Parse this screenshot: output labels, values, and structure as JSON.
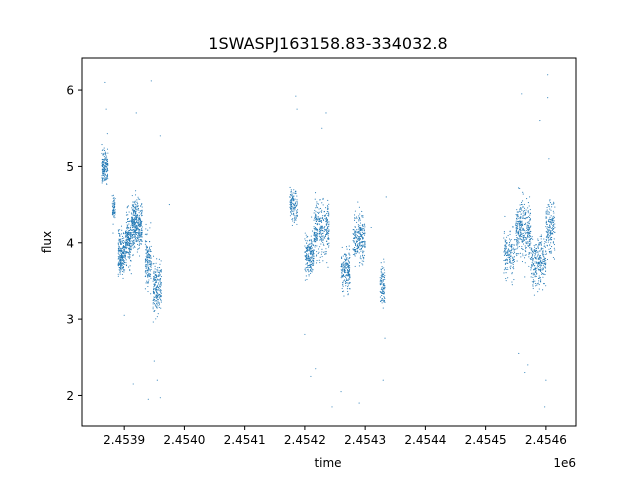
{
  "chart_data": {
    "type": "scatter",
    "title": "1SWASPJ163158.83-334032.8",
    "xlabel": "time",
    "ylabel": "flux",
    "x_offset_label": "1e6",
    "x_axis_multiplier": 1000000,
    "xlim": [
      2.45383,
      2.45465
    ],
    "ylim": [
      1.6,
      6.42
    ],
    "x_ticks": [
      2.4539,
      2.454,
      2.4541,
      2.4542,
      2.4543,
      2.4544,
      2.4545,
      2.4546
    ],
    "x_tick_labels": [
      "2.4539",
      "2.4540",
      "2.4541",
      "2.4542",
      "2.4543",
      "2.4544",
      "2.4545",
      "2.4546"
    ],
    "y_ticks": [
      2,
      3,
      4,
      5,
      6
    ],
    "y_tick_labels": [
      "2",
      "3",
      "4",
      "5",
      "6"
    ],
    "grid": false,
    "marker_color": "#1f77b4",
    "series": [
      {
        "clusters": [
          {
            "x_start": 2.453863,
            "x_end": 2.453873,
            "y_center": 5.0,
            "y_spread": 0.22,
            "n": 160
          },
          {
            "x_start": 2.45388,
            "x_end": 2.453885,
            "y_center": 4.45,
            "y_spread": 0.15,
            "n": 60
          },
          {
            "x_start": 2.45389,
            "x_end": 2.453902,
            "y_center": 3.85,
            "y_spread": 0.25,
            "n": 220
          },
          {
            "x_start": 2.453902,
            "x_end": 2.453912,
            "y_center": 4.05,
            "y_spread": 0.28,
            "n": 200
          },
          {
            "x_start": 2.453912,
            "x_end": 2.453922,
            "y_center": 4.25,
            "y_spread": 0.32,
            "n": 220
          },
          {
            "x_start": 2.453922,
            "x_end": 2.45393,
            "y_center": 4.2,
            "y_spread": 0.3,
            "n": 140
          },
          {
            "x_start": 2.453935,
            "x_end": 2.453945,
            "y_center": 3.75,
            "y_spread": 0.32,
            "n": 150
          },
          {
            "x_start": 2.453948,
            "x_end": 2.453962,
            "y_center": 3.4,
            "y_spread": 0.3,
            "n": 200
          },
          {
            "x_start": 2.454175,
            "x_end": 2.454188,
            "y_center": 4.5,
            "y_spread": 0.2,
            "n": 120
          },
          {
            "x_start": 2.4542,
            "x_end": 2.454215,
            "y_center": 3.85,
            "y_spread": 0.25,
            "n": 200
          },
          {
            "x_start": 2.454215,
            "x_end": 2.45424,
            "y_center": 4.2,
            "y_spread": 0.32,
            "n": 300
          },
          {
            "x_start": 2.45426,
            "x_end": 2.454275,
            "y_center": 3.65,
            "y_spread": 0.25,
            "n": 180
          },
          {
            "x_start": 2.45428,
            "x_end": 2.4543,
            "y_center": 4.05,
            "y_spread": 0.28,
            "n": 240
          },
          {
            "x_start": 2.454325,
            "x_end": 2.454333,
            "y_center": 3.45,
            "y_spread": 0.25,
            "n": 100
          },
          {
            "x_start": 2.45453,
            "x_end": 2.454548,
            "y_center": 3.85,
            "y_spread": 0.28,
            "n": 150
          },
          {
            "x_start": 2.45455,
            "x_end": 2.454575,
            "y_center": 4.15,
            "y_spread": 0.35,
            "n": 320
          },
          {
            "x_start": 2.454575,
            "x_end": 2.4546,
            "y_center": 3.75,
            "y_spread": 0.32,
            "n": 260
          },
          {
            "x_start": 2.4546,
            "x_end": 2.454615,
            "y_center": 4.2,
            "y_spread": 0.3,
            "n": 160
          }
        ],
        "outliers": [
          [
            2.453868,
            6.1
          ],
          [
            2.45387,
            5.75
          ],
          [
            2.45392,
            5.7
          ],
          [
            2.453945,
            6.12
          ],
          [
            2.45394,
            1.95
          ],
          [
            2.45396,
            1.97
          ],
          [
            2.45395,
            2.45
          ],
          [
            2.453955,
            2.2
          ],
          [
            2.45396,
            5.4
          ],
          [
            2.4539,
            3.05
          ],
          [
            2.453975,
            4.5
          ],
          [
            2.453915,
            2.15
          ],
          [
            2.454185,
            5.92
          ],
          [
            2.454187,
            5.75
          ],
          [
            2.4542,
            2.8
          ],
          [
            2.45421,
            2.25
          ],
          [
            2.454218,
            2.35
          ],
          [
            2.454235,
            5.7
          ],
          [
            2.454228,
            5.5
          ],
          [
            2.454245,
            1.85
          ],
          [
            2.45426,
            2.05
          ],
          [
            2.45429,
            1.9
          ],
          [
            2.45431,
            4.2
          ],
          [
            2.45433,
            2.2
          ],
          [
            2.454333,
            2.75
          ],
          [
            2.454335,
            4.6
          ],
          [
            2.454555,
            2.55
          ],
          [
            2.45456,
            5.95
          ],
          [
            2.45457,
            2.4
          ],
          [
            2.45459,
            5.6
          ],
          [
            2.454598,
            1.85
          ],
          [
            2.454603,
            6.2
          ],
          [
            2.454603,
            5.9
          ],
          [
            2.4546,
            2.2
          ],
          [
            2.454605,
            5.1
          ],
          [
            2.454565,
            2.3
          ]
        ]
      }
    ]
  }
}
